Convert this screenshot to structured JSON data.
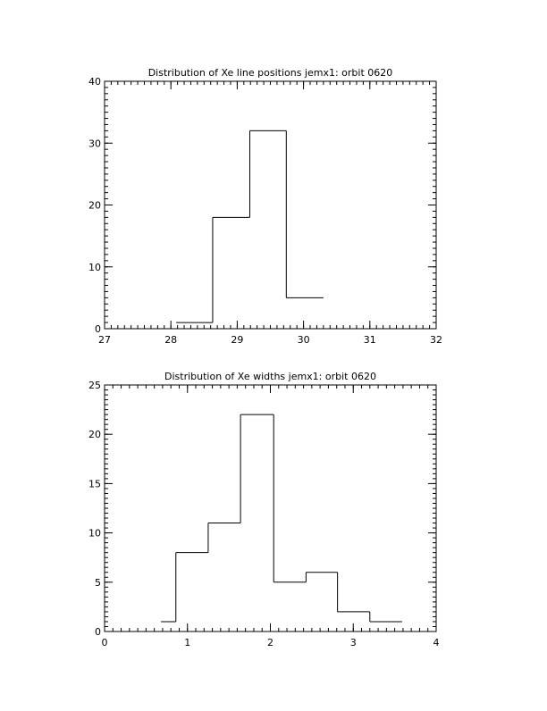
{
  "chart_data": [
    {
      "type": "histogram",
      "title": "Distribution of Xe line positions jemx1: orbit 0620",
      "bins": [
        28.08,
        28.63,
        29.19,
        29.74,
        30.3
      ],
      "values": [
        1,
        18,
        32,
        5
      ],
      "xlim": [
        27,
        32
      ],
      "xticks": [
        27,
        28,
        29,
        30,
        31,
        32
      ],
      "ylim": [
        0,
        40
      ],
      "yticks": [
        0,
        10,
        20,
        30,
        40
      ],
      "color": "#000000"
    },
    {
      "type": "histogram",
      "title": "Distribution of Xe widths jemx1: orbit 0620",
      "bins": [
        0.68,
        0.86,
        1.25,
        1.64,
        2.04,
        2.43,
        2.81,
        3.2,
        3.59
      ],
      "values": [
        1,
        8,
        11,
        22,
        5,
        6,
        2,
        1
      ],
      "xlim": [
        0,
        4
      ],
      "xticks": [
        0,
        1,
        2,
        3,
        4
      ],
      "ylim": [
        0,
        25
      ],
      "yticks": [
        0,
        5,
        10,
        15,
        20,
        25
      ],
      "color": "#000000"
    }
  ]
}
